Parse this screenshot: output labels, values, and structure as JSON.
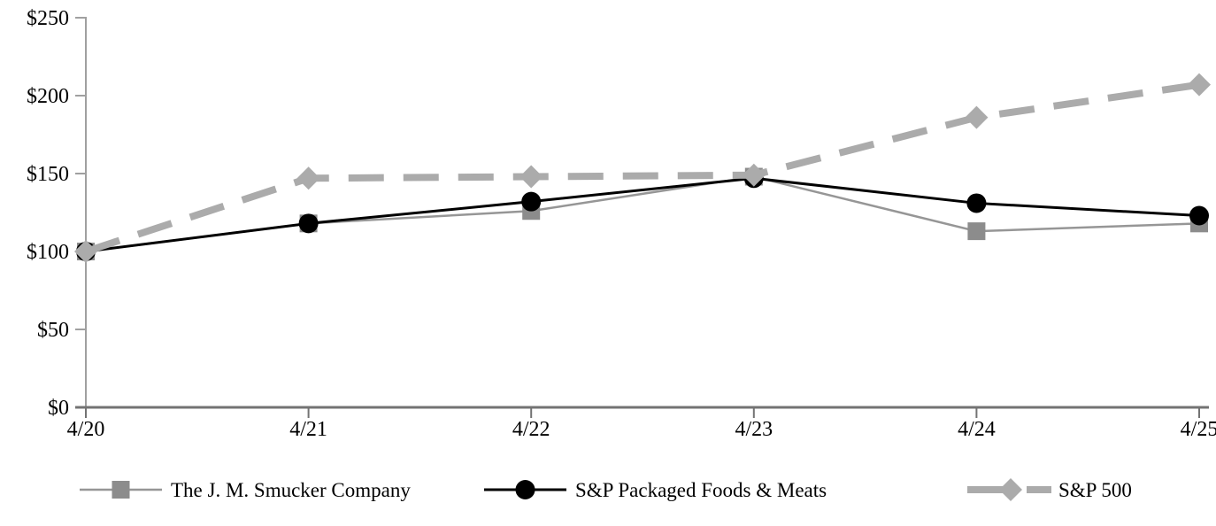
{
  "chart_data": {
    "type": "line",
    "title": "",
    "xlabel": "",
    "ylabel": "",
    "categories": [
      "4/20",
      "4/21",
      "4/22",
      "4/23",
      "4/24",
      "4/25"
    ],
    "ytick_labels": [
      "$0",
      "$50",
      "$100",
      "$150",
      "$200",
      "$250"
    ],
    "ylim": [
      0,
      250
    ],
    "ytick_step": 50,
    "grid": false,
    "legend_position": "bottom",
    "axis_color": "#8C8C8C",
    "series": [
      {
        "name": "The J. M. Smucker Company",
        "marker": "square",
        "marker_color": "#8C8C8C",
        "line_color": "#969696",
        "line_style": "solid",
        "values": [
          100,
          118,
          126,
          148,
          113,
          118
        ]
      },
      {
        "name": "S&P Packaged Foods & Meats",
        "marker": "circle",
        "marker_color": "#000000",
        "line_color": "#000000",
        "line_style": "solid",
        "values": [
          100,
          118,
          132,
          147,
          131,
          123
        ]
      },
      {
        "name": "S&P 500",
        "marker": "diamond",
        "marker_color": "#ABABAB",
        "line_color": "#ABABAB",
        "line_style": "dashed",
        "values": [
          100,
          147,
          148,
          149,
          186,
          207
        ]
      }
    ]
  }
}
